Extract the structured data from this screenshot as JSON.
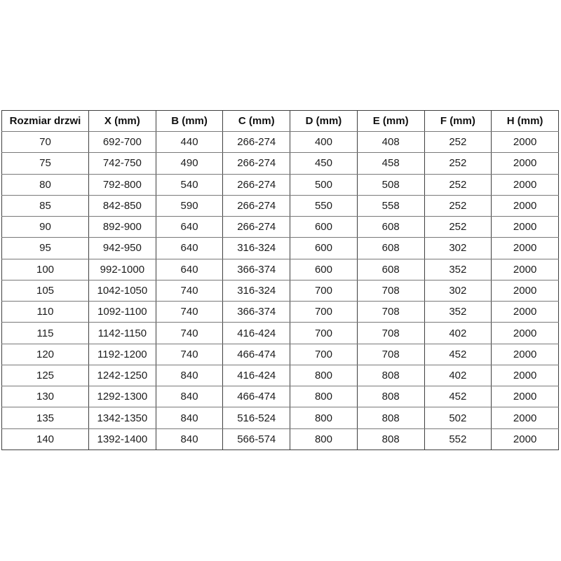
{
  "chart_data": {
    "type": "table",
    "title": "",
    "columns": [
      "Rozmiar drzwi",
      "X (mm)",
      "B (mm)",
      "C (mm)",
      "D (mm)",
      "E (mm)",
      "F (mm)",
      "H (mm)"
    ],
    "rows": [
      [
        "70",
        "692-700",
        "440",
        "266-274",
        "400",
        "408",
        "252",
        "2000"
      ],
      [
        "75",
        "742-750",
        "490",
        "266-274",
        "450",
        "458",
        "252",
        "2000"
      ],
      [
        "80",
        "792-800",
        "540",
        "266-274",
        "500",
        "508",
        "252",
        "2000"
      ],
      [
        "85",
        "842-850",
        "590",
        "266-274",
        "550",
        "558",
        "252",
        "2000"
      ],
      [
        "90",
        "892-900",
        "640",
        "266-274",
        "600",
        "608",
        "252",
        "2000"
      ],
      [
        "95",
        "942-950",
        "640",
        "316-324",
        "600",
        "608",
        "302",
        "2000"
      ],
      [
        "100",
        "992-1000",
        "640",
        "366-374",
        "600",
        "608",
        "352",
        "2000"
      ],
      [
        "105",
        "1042-1050",
        "740",
        "316-324",
        "700",
        "708",
        "302",
        "2000"
      ],
      [
        "110",
        "1092-1100",
        "740",
        "366-374",
        "700",
        "708",
        "352",
        "2000"
      ],
      [
        "115",
        "1142-1150",
        "740",
        "416-424",
        "700",
        "708",
        "402",
        "2000"
      ],
      [
        "120",
        "1192-1200",
        "740",
        "466-474",
        "700",
        "708",
        "452",
        "2000"
      ],
      [
        "125",
        "1242-1250",
        "840",
        "416-424",
        "800",
        "808",
        "402",
        "2000"
      ],
      [
        "130",
        "1292-1300",
        "840",
        "466-474",
        "800",
        "808",
        "452",
        "2000"
      ],
      [
        "135",
        "1342-1350",
        "840",
        "516-524",
        "800",
        "808",
        "502",
        "2000"
      ],
      [
        "140",
        "1392-1400",
        "840",
        "566-574",
        "800",
        "808",
        "552",
        "2000"
      ]
    ]
  },
  "colors": {
    "background": "#ffffff",
    "border_vertical": "#3f3f3f",
    "border_horizontal": "#787878",
    "text": "#1c1c1c"
  }
}
